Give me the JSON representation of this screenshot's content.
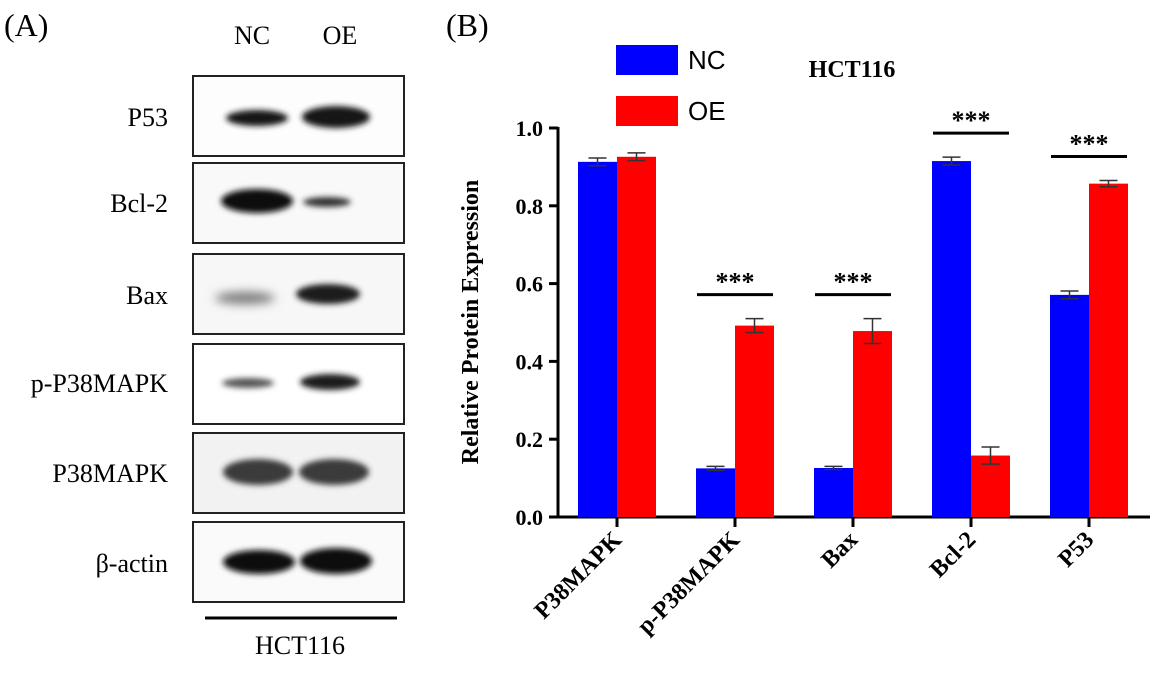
{
  "panel_a": {
    "label": "(A)",
    "lanes": [
      "NC",
      "OE"
    ],
    "rows": [
      "P53",
      "Bcl-2",
      "Bax",
      "p-P38MAPK",
      "P38MAPK",
      "β-actin"
    ],
    "cell_line": "HCT116"
  },
  "panel_b": {
    "label": "(B)"
  },
  "colors": {
    "nc": "#0000ff",
    "oe": "#ff0000",
    "band": "#141414"
  },
  "chart_data": {
    "type": "bar",
    "title": "HCT116",
    "xlabel": "",
    "ylabel": "Relative Protein Expression",
    "ylim": [
      0,
      1.0
    ],
    "yticks": [
      "0.0",
      "0.2",
      "0.4",
      "0.6",
      "0.8",
      "1.0"
    ],
    "ytick_values": [
      0,
      0.2,
      0.4,
      0.6,
      0.8,
      1.0
    ],
    "legend_position": "top-left",
    "categories": [
      "P38MAPK",
      "p-P38MAPK",
      "Bax",
      "Bcl-2",
      "P53"
    ],
    "series": [
      {
        "name": "NC",
        "values": [
          0.913,
          0.125,
          0.126,
          0.915,
          0.571
        ],
        "errors": [
          0.01,
          0.005,
          0.004,
          0.01,
          0.01
        ]
      },
      {
        "name": "OE",
        "values": [
          0.926,
          0.492,
          0.478,
          0.158,
          0.857
        ],
        "errors": [
          0.01,
          0.018,
          0.032,
          0.022,
          0.008
        ]
      }
    ],
    "significance": [
      "",
      "***",
      "***",
      "***",
      "***"
    ]
  }
}
